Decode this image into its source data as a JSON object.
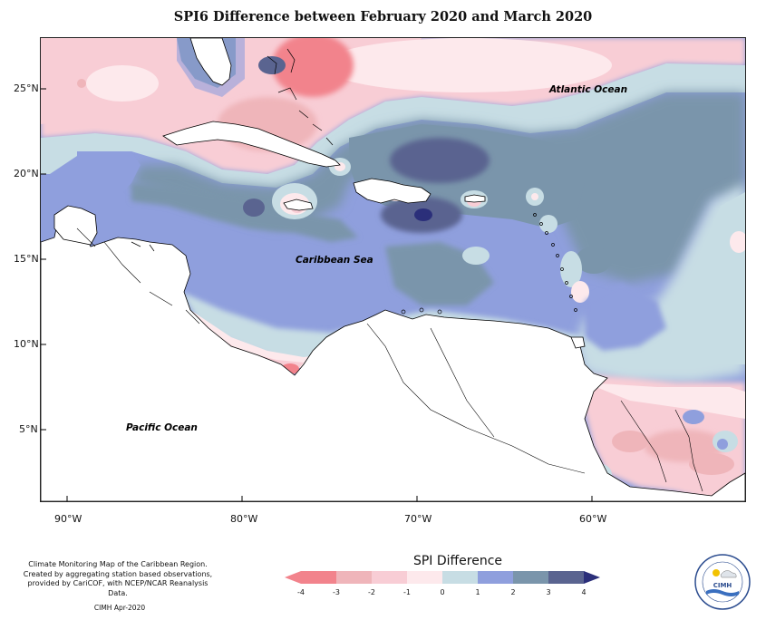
{
  "title": "SPI6 Difference between February 2020 and March 2020",
  "map": {
    "axes": {
      "lon_ticks": [
        {
          "value": -90,
          "label": "90°W"
        },
        {
          "value": -80,
          "label": "80°W"
        },
        {
          "value": -70,
          "label": "70°W"
        },
        {
          "value": -60,
          "label": "60°W"
        }
      ],
      "lat_ticks": [
        {
          "value": 25,
          "label": "25°N"
        },
        {
          "value": 20,
          "label": "20°N"
        },
        {
          "value": 15,
          "label": "15°N"
        },
        {
          "value": 10,
          "label": "10°N"
        },
        {
          "value": 5,
          "label": "5°N"
        }
      ],
      "lon_range": [
        -92.3,
        -52.2
      ],
      "lat_range": [
        0.8,
        28.2
      ]
    },
    "ocean_labels": {
      "atlantic": "Atlantic Ocean",
      "caribbean": "Caribbean Sea",
      "pacific": "Pacific Ocean"
    }
  },
  "legend": {
    "title": "SPI Difference",
    "ticks": [
      "-4",
      "-3",
      "-2",
      "-1",
      "0",
      "1",
      "2",
      "3",
      "4"
    ],
    "colors": [
      "#f2838c",
      "#efb5ba",
      "#f8cdd5",
      "#fde9ec",
      "#c7dde4",
      "#8f9fdd",
      "#7a95ab",
      "#5a6490",
      "#2b2f7a"
    ]
  },
  "credits": {
    "line1": "Climate Monitoring Map of the Caribbean Region.",
    "line2": "Created by aggregating station based observations,",
    "line3": "provided by CariCOF, with NCEP/NCAR Reanalysis Data.",
    "stamp": "CIMH Apr-2020"
  },
  "logo": {
    "text": "CIMH",
    "icon": "cimh-logo-icon"
  }
}
